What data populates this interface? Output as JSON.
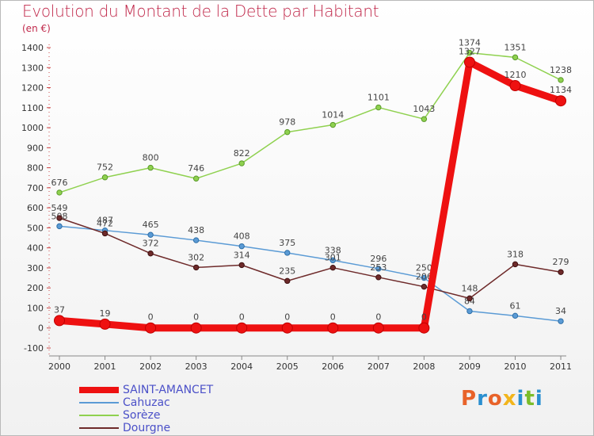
{
  "header": {
    "title": "Evolution du Montant de la Dette par Habitant",
    "subtitle": "(en €)"
  },
  "logo": {
    "text": "Proxiti",
    "colors": [
      "#e8632a",
      "#2a8fd0",
      "#e8632a",
      "#f2b51c",
      "#2a8fd0",
      "#7bbd2a",
      "#2a8fd0"
    ]
  },
  "chart_data": {
    "type": "line",
    "title": "Evolution du Montant de la Dette par Habitant",
    "subtitle": "(en €)",
    "x": [
      "2000",
      "2001",
      "2002",
      "2003",
      "2004",
      "2005",
      "2006",
      "2007",
      "2008",
      "2009",
      "2010",
      "2011"
    ],
    "ylim": [
      -100,
      1400
    ],
    "yticks": [
      -100,
      0,
      100,
      200,
      300,
      400,
      500,
      600,
      700,
      800,
      900,
      1000,
      1100,
      1200,
      1300,
      1400
    ],
    "grid": false,
    "legend_position": "bottom-left",
    "series": [
      {
        "name": "Sorèze",
        "color": "#8fd14f",
        "values": [
          676,
          752,
          800,
          746,
          822,
          978,
          1014,
          1101,
          1043,
          1374,
          1351,
          1238
        ]
      },
      {
        "name": "Cahuzac",
        "color": "#5b9bd5",
        "values": [
          508,
          487,
          465,
          438,
          408,
          375,
          338,
          296,
          250,
          84,
          61,
          34
        ]
      },
      {
        "name": "Dourgne",
        "color": "#6e2a2a",
        "values": [
          549,
          472,
          372,
          302,
          314,
          235,
          301,
          253,
          206,
          148,
          318,
          279
        ]
      },
      {
        "name": "SAINT-AMANCET",
        "color": "#ee1111",
        "values": [
          37,
          19,
          0,
          0,
          0,
          0,
          0,
          0,
          0,
          1327,
          1210,
          1134
        ]
      }
    ],
    "legend_order": [
      "SAINT-AMANCET",
      "Cahuzac",
      "Sorèze",
      "Dourgne"
    ]
  }
}
